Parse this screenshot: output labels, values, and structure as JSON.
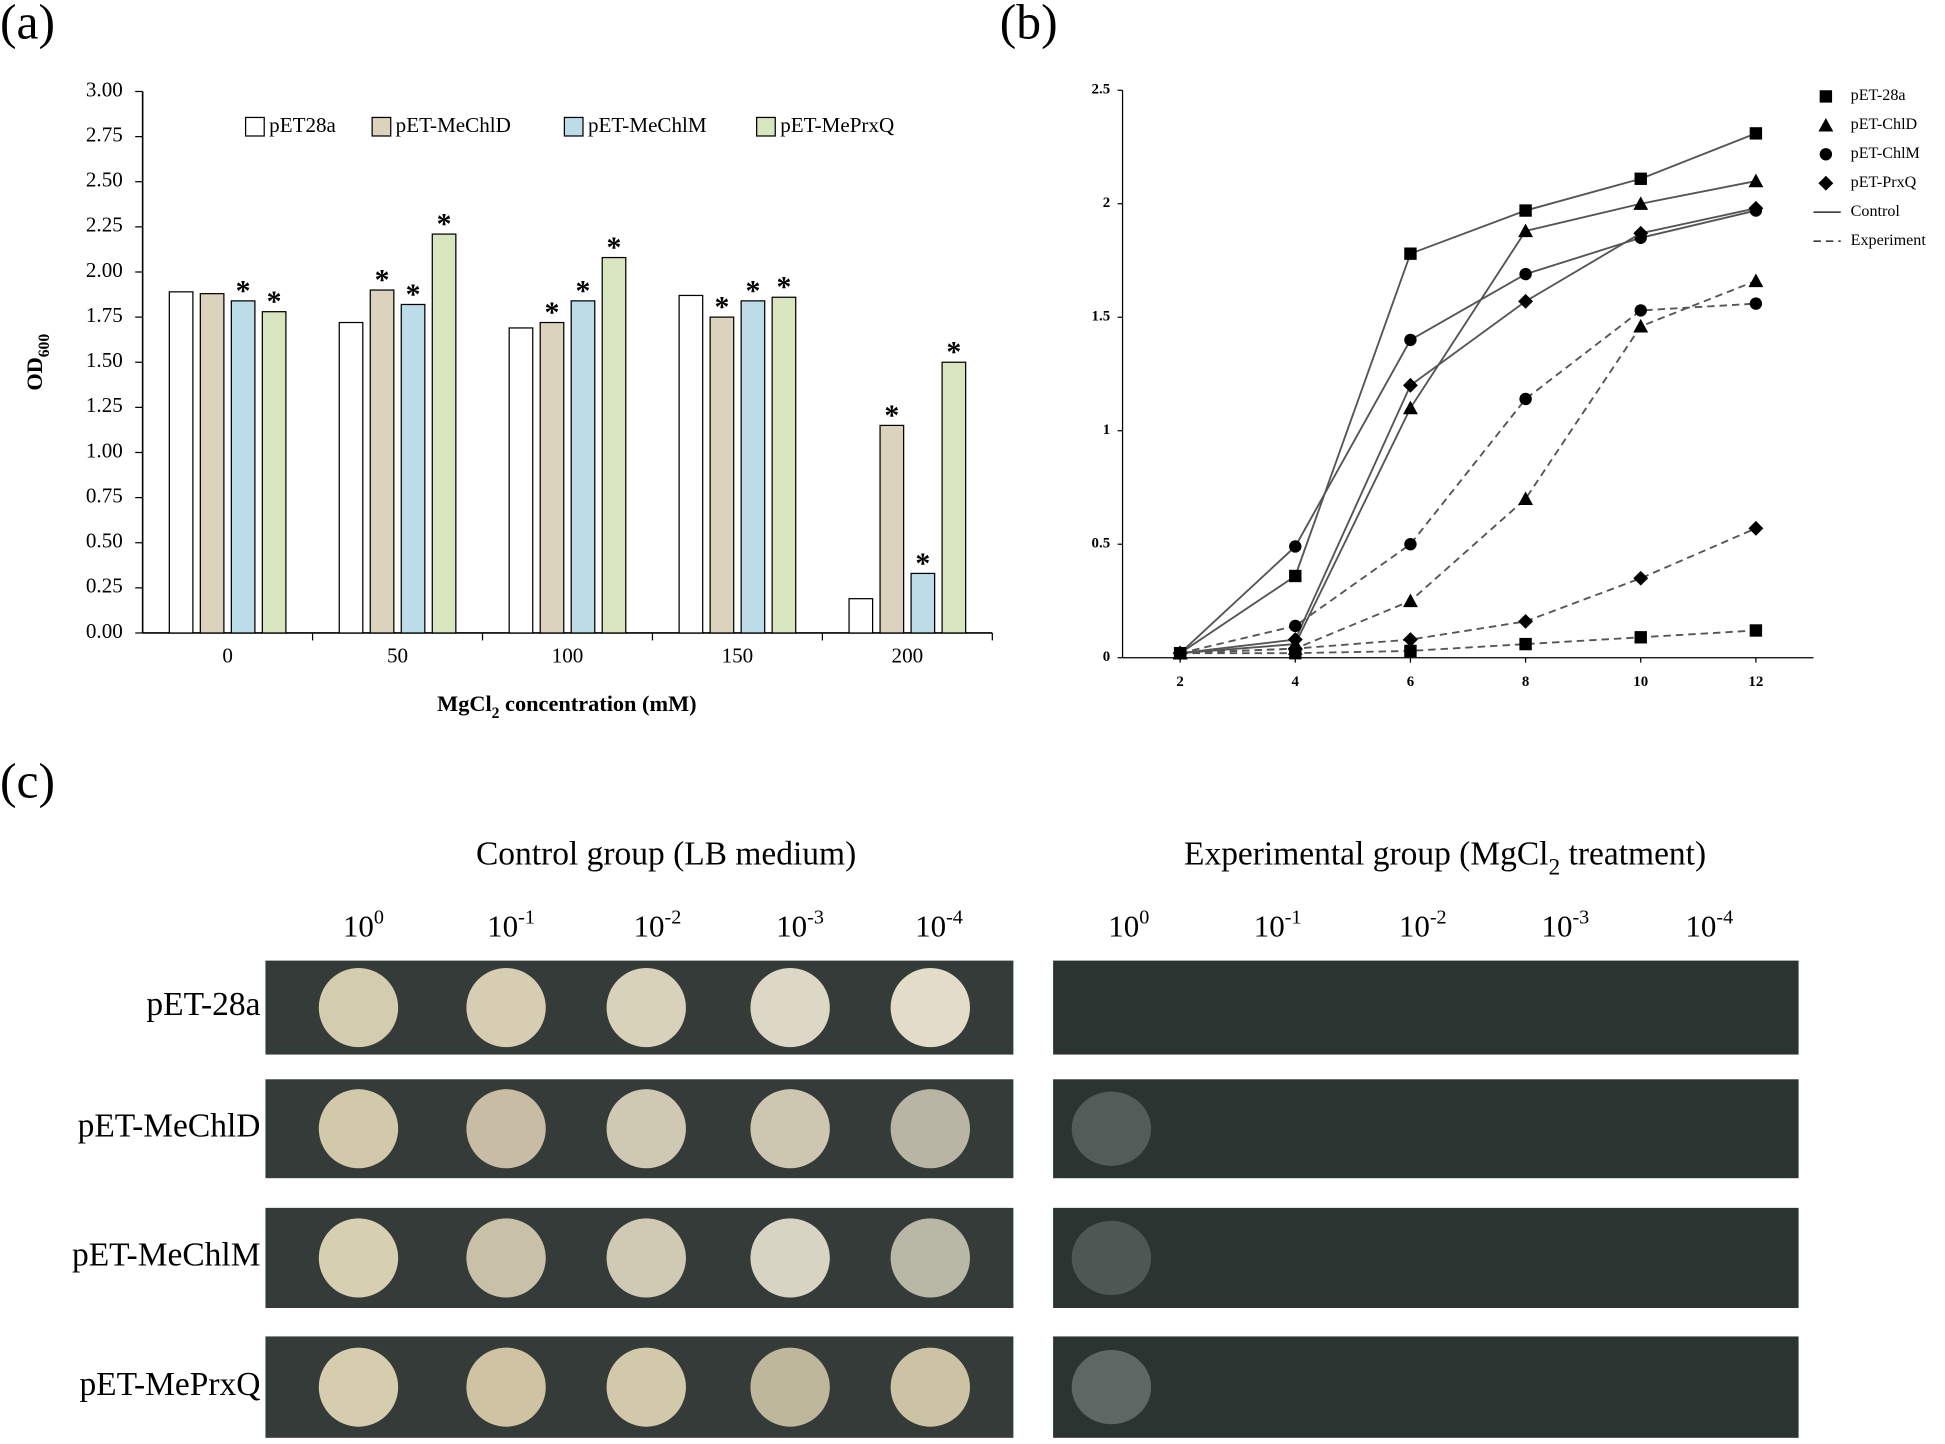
{
  "chart_data": [
    {
      "type": "bar",
      "panel_label": "(a)",
      "y_label": [
        "OD",
        "600"
      ],
      "x_label": [
        "MgCl",
        "2",
        " concentration (mM)"
      ],
      "categories": [
        "0",
        "50",
        "100",
        "150",
        "200"
      ],
      "ylim": [
        0,
        3
      ],
      "yticks": [
        {
          "value": 0,
          "label": "0.00"
        },
        {
          "value": 0.25,
          "label": "0.25"
        },
        {
          "value": 0.5,
          "label": "0.50"
        },
        {
          "value": 0.75,
          "label": "0.75"
        },
        {
          "value": 1,
          "label": "1.00"
        },
        {
          "value": 1.25,
          "label": "1.25"
        },
        {
          "value": 1.5,
          "label": "1.50"
        },
        {
          "value": 1.75,
          "label": "1.75"
        },
        {
          "value": 2,
          "label": "2.00"
        },
        {
          "value": 2.25,
          "label": "2.25"
        },
        {
          "value": 2.5,
          "label": "2.50"
        },
        {
          "value": 2.75,
          "label": "2.75"
        },
        {
          "value": 3,
          "label": "3.00"
        }
      ],
      "series": [
        {
          "name": "pET28a",
          "color": "#ffffff",
          "values": [
            1.89,
            1.72,
            1.69,
            1.87,
            0.19
          ]
        },
        {
          "name": "pET-MeChlD",
          "color": "#dcd3bf",
          "values": [
            1.88,
            1.9,
            1.72,
            1.75,
            1.15
          ],
          "significance": [
            null,
            "*",
            "*",
            "*",
            "*"
          ]
        },
        {
          "name": "pET-MeChlM",
          "color": "#bcdde8",
          "values": [
            1.84,
            1.82,
            1.84,
            1.84,
            0.33
          ],
          "significance": [
            "*",
            "*",
            "*",
            "*",
            "*"
          ]
        },
        {
          "name": "pET-MePrxQ",
          "color": "#d9e5bf",
          "values": [
            1.78,
            2.21,
            2.08,
            1.86,
            1.5
          ],
          "significance": [
            "*",
            "*",
            "*",
            "*",
            "*"
          ]
        }
      ]
    },
    {
      "type": "line",
      "panel_label": "(b)",
      "x": [
        2,
        4,
        6,
        8,
        10,
        12
      ],
      "xlim": [
        1,
        13
      ],
      "xticks": [
        2,
        4,
        6,
        8,
        10,
        12
      ],
      "ylim": [
        0,
        2.5
      ],
      "yticks": [
        0,
        0.5,
        1,
        1.5,
        2,
        2.5
      ],
      "color": "#555555",
      "legend": [
        {
          "label": "pET-28a",
          "marker": "square"
        },
        {
          "label": "pET-ChlD",
          "marker": "triangle"
        },
        {
          "label": "pET-ChlM",
          "marker": "circle"
        },
        {
          "label": "pET-PrxQ",
          "marker": "diamond"
        },
        {
          "label": "Control",
          "linestyle": "solid"
        },
        {
          "label": "Experiment",
          "linestyle": "dashed"
        }
      ],
      "series": [
        {
          "marker": "square",
          "linestyle": "solid",
          "values": [
            0.02,
            0.36,
            1.78,
            1.97,
            2.11,
            2.31
          ]
        },
        {
          "marker": "triangle",
          "linestyle": "solid",
          "values": [
            0.02,
            0.06,
            1.1,
            1.88,
            2.0,
            2.1
          ]
        },
        {
          "marker": "circle",
          "linestyle": "solid",
          "values": [
            0.02,
            0.49,
            1.4,
            1.69,
            1.85,
            1.97
          ]
        },
        {
          "marker": "diamond",
          "linestyle": "solid",
          "values": [
            0.02,
            0.08,
            1.2,
            1.57,
            1.87,
            1.98
          ]
        },
        {
          "marker": "square",
          "linestyle": "dashed",
          "values": [
            0.02,
            0.02,
            0.03,
            0.06,
            0.09,
            0.12
          ]
        },
        {
          "marker": "triangle",
          "linestyle": "dashed",
          "values": [
            0.02,
            0.04,
            0.25,
            0.7,
            1.46,
            1.66
          ]
        },
        {
          "marker": "circle",
          "linestyle": "dashed",
          "values": [
            0.02,
            0.14,
            0.5,
            1.14,
            1.53,
            1.56
          ]
        },
        {
          "marker": "diamond",
          "linestyle": "dashed",
          "values": [
            0.02,
            0.04,
            0.08,
            0.16,
            0.35,
            0.57
          ]
        }
      ]
    }
  ],
  "plate_panel": {
    "panel_label": "(c)",
    "groups": [
      [
        "Control group (LB medium)"
      ],
      [
        "Experimental group (MgCl",
        "2",
        " treatment)"
      ]
    ],
    "dilutions": [
      {
        "base": "10",
        "exponent": "0"
      },
      {
        "base": "10",
        "exponent": "-1"
      },
      {
        "base": "10",
        "exponent": "-2"
      },
      {
        "base": "10",
        "exponent": "-3"
      },
      {
        "base": "10",
        "exponent": "-4"
      }
    ],
    "rows": [
      "pET-28a",
      "pET-MeChlD",
      "pET-MeChlM",
      "pET-MePrxQ"
    ]
  }
}
